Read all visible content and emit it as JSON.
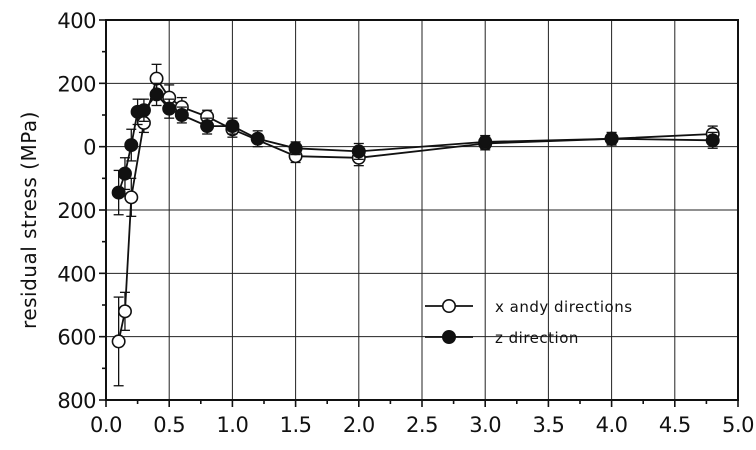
{
  "chart_data": {
    "type": "line",
    "ylabel": "residual stress (MPa)",
    "xlabel": "",
    "xlim": [
      0.0,
      5.0
    ],
    "ylim": [
      -800,
      400
    ],
    "x_ticks": [
      "0.0",
      "0.5",
      "1.0",
      "1.5",
      "2.0",
      "2.5",
      "3.0",
      "3.5",
      "4.0",
      "4.5",
      "5.0"
    ],
    "y_ticks": [
      {
        "value": 400,
        "label": "400"
      },
      {
        "value": 200,
        "label": "200"
      },
      {
        "value": 0,
        "label": "0"
      },
      {
        "value": -200,
        "label": "200"
      },
      {
        "value": -400,
        "label": "400"
      },
      {
        "value": -600,
        "label": "600"
      },
      {
        "value": -800,
        "label": "800"
      }
    ],
    "grid": true,
    "legend_position": "bottom-right",
    "series": [
      {
        "name": "x andy directions",
        "marker": "open-circle",
        "points": [
          {
            "x": 0.1,
            "y": -615,
            "err": 140
          },
          {
            "x": 0.15,
            "y": -520,
            "err": 60
          },
          {
            "x": 0.2,
            "y": -160,
            "err": 60
          },
          {
            "x": 0.3,
            "y": 75,
            "err": 30
          },
          {
            "x": 0.4,
            "y": 215,
            "err": 45
          },
          {
            "x": 0.5,
            "y": 155,
            "err": 40
          },
          {
            "x": 0.6,
            "y": 125,
            "err": 30
          },
          {
            "x": 0.8,
            "y": 95,
            "err": 20
          },
          {
            "x": 1.0,
            "y": 55,
            "err": 25
          },
          {
            "x": 1.5,
            "y": -30,
            "err": 20
          },
          {
            "x": 2.0,
            "y": -35,
            "err": 25
          },
          {
            "x": 3.0,
            "y": 10,
            "err": 20
          },
          {
            "x": 4.0,
            "y": 25,
            "err": 15
          },
          {
            "x": 4.8,
            "y": 40,
            "err": 25
          }
        ]
      },
      {
        "name": "z direction",
        "marker": "filled-circle",
        "points": [
          {
            "x": 0.1,
            "y": -145,
            "err": 70
          },
          {
            "x": 0.15,
            "y": -85,
            "err": 50
          },
          {
            "x": 0.2,
            "y": 5,
            "err": 50
          },
          {
            "x": 0.25,
            "y": 110,
            "err": 40
          },
          {
            "x": 0.3,
            "y": 115,
            "err": 35
          },
          {
            "x": 0.4,
            "y": 165,
            "err": 35
          },
          {
            "x": 0.5,
            "y": 120,
            "err": 30
          },
          {
            "x": 0.6,
            "y": 100,
            "err": 25
          },
          {
            "x": 0.8,
            "y": 65,
            "err": 25
          },
          {
            "x": 1.0,
            "y": 65,
            "err": 25
          },
          {
            "x": 1.2,
            "y": 25,
            "err": 25
          },
          {
            "x": 1.5,
            "y": -5,
            "err": 20
          },
          {
            "x": 2.0,
            "y": -15,
            "err": 25
          },
          {
            "x": 3.0,
            "y": 15,
            "err": 20
          },
          {
            "x": 4.0,
            "y": 25,
            "err": 20
          },
          {
            "x": 4.8,
            "y": 20,
            "err": 25
          }
        ]
      }
    ]
  }
}
